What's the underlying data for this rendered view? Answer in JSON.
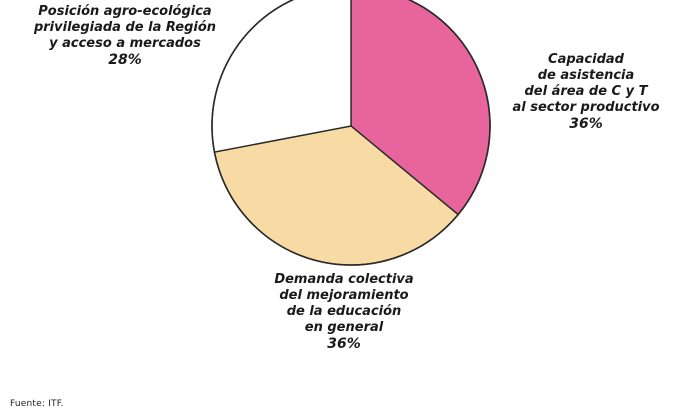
{
  "chart_data": {
    "type": "pie",
    "slices": [
      {
        "label_lines": [
          "Capacidad",
          "de asistencia",
          "del área de C y T",
          "al sector productivo"
        ],
        "value": 36,
        "percent_label": "36%",
        "color": "#e8649c"
      },
      {
        "label_lines": [
          "Demanda colectiva",
          "del mejoramiento",
          "de la educación",
          "en general"
        ],
        "value": 36,
        "percent_label": "36%",
        "color": "#f8dba4"
      },
      {
        "label_lines": [
          "Posición agro-ecológica",
          "privilegiada de la Región",
          "y acceso a mercados"
        ],
        "value": 28,
        "percent_label": "28%",
        "color": "#ffffff"
      }
    ],
    "start_angle_deg": 0,
    "direction": "clockwise",
    "outline_color": "#2a2a2a"
  },
  "source": "Fuente: ITF."
}
